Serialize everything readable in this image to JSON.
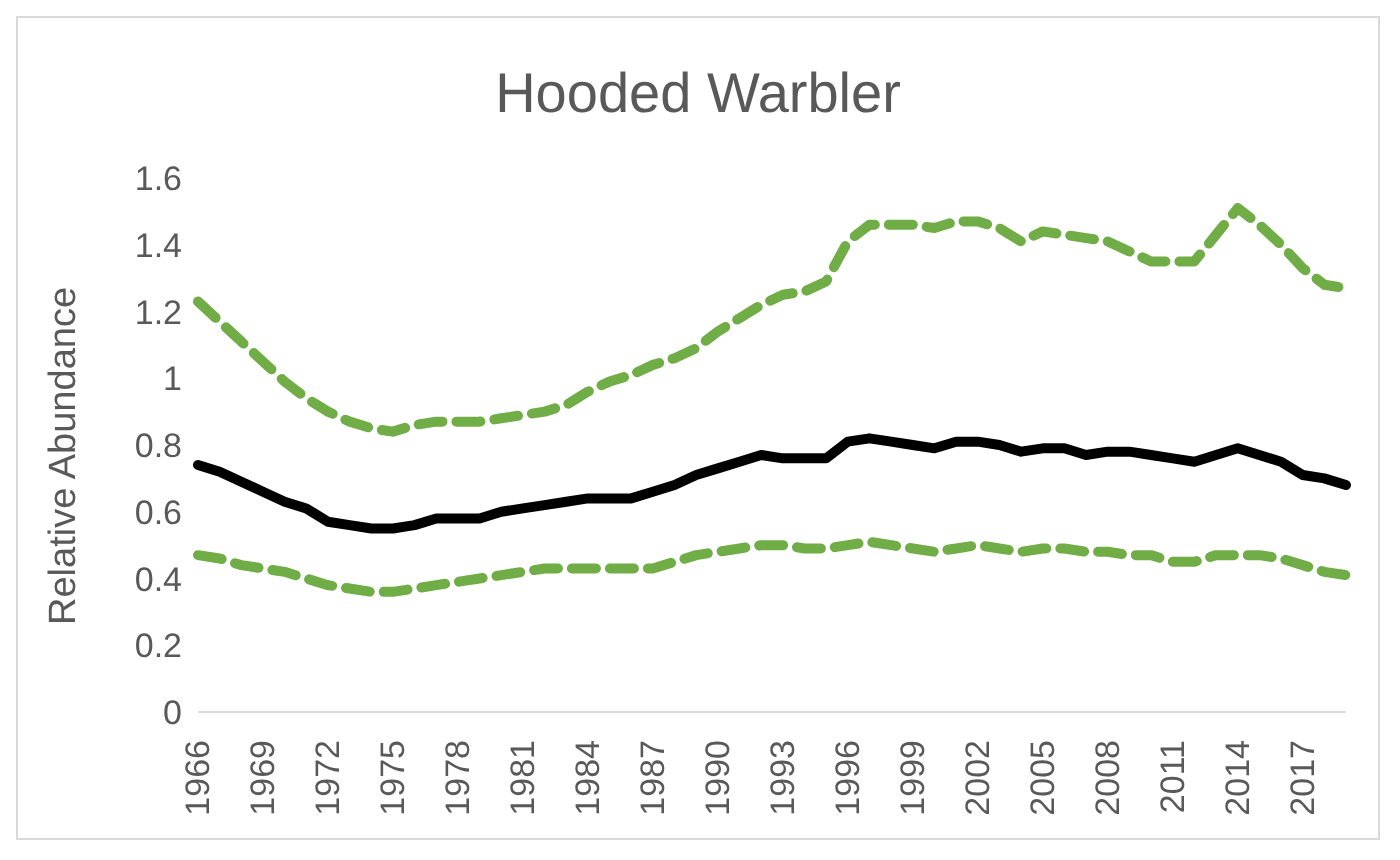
{
  "chart_data": {
    "type": "line",
    "title": "Hooded Warbler",
    "ylabel": "Relative Abundance",
    "categories": [
      "1966",
      null,
      null,
      "1969",
      null,
      null,
      "1972",
      null,
      null,
      "1975",
      null,
      null,
      "1978",
      null,
      null,
      "1981",
      null,
      null,
      "1984",
      null,
      null,
      "1987",
      null,
      null,
      "1990",
      null,
      null,
      "1993",
      null,
      null,
      "1996",
      null,
      null,
      "1999",
      null,
      null,
      "2002",
      null,
      null,
      "2005",
      null,
      null,
      "2008",
      null,
      null,
      "2011",
      null,
      null,
      "2014",
      null,
      null,
      "2017",
      null,
      null
    ],
    "series": [
      {
        "color": "#70ad47",
        "line_style": "dashed",
        "values": [
          1.23,
          1.17,
          1.11,
          1.05,
          0.99,
          0.94,
          0.9,
          0.87,
          0.85,
          0.84,
          0.86,
          0.87,
          0.87,
          0.87,
          0.88,
          0.89,
          0.9,
          0.92,
          0.96,
          0.99,
          1.01,
          1.04,
          1.06,
          1.09,
          1.14,
          1.18,
          1.22,
          1.25,
          1.26,
          1.29,
          1.41,
          1.46,
          1.46,
          1.46,
          1.45,
          1.47,
          1.47,
          1.45,
          1.41,
          1.44,
          1.43,
          1.42,
          1.41,
          1.38,
          1.35,
          1.35,
          1.35,
          1.43,
          1.51,
          1.46,
          1.4,
          1.33,
          1.28,
          1.27
        ]
      },
      {
        "color": "#000000",
        "line_style": "solid",
        "values": [
          0.74,
          0.72,
          0.69,
          0.66,
          0.63,
          0.61,
          0.57,
          0.56,
          0.55,
          0.55,
          0.56,
          0.58,
          0.58,
          0.58,
          0.6,
          0.61,
          0.62,
          0.63,
          0.64,
          0.64,
          0.64,
          0.66,
          0.68,
          0.71,
          0.73,
          0.75,
          0.77,
          0.76,
          0.76,
          0.76,
          0.81,
          0.82,
          0.81,
          0.8,
          0.79,
          0.81,
          0.81,
          0.8,
          0.78,
          0.79,
          0.79,
          0.77,
          0.78,
          0.78,
          0.77,
          0.76,
          0.75,
          0.77,
          0.79,
          0.77,
          0.75,
          0.71,
          0.7,
          0.68
        ]
      },
      {
        "color": "#70ad47",
        "line_style": "dashed",
        "values": [
          0.47,
          0.46,
          0.44,
          0.43,
          0.42,
          0.4,
          0.38,
          0.37,
          0.36,
          0.36,
          0.37,
          0.38,
          0.39,
          0.4,
          0.41,
          0.42,
          0.43,
          0.43,
          0.43,
          0.43,
          0.43,
          0.43,
          0.45,
          0.47,
          0.48,
          0.49,
          0.5,
          0.5,
          0.49,
          0.49,
          0.5,
          0.51,
          0.5,
          0.49,
          0.48,
          0.49,
          0.5,
          0.49,
          0.48,
          0.49,
          0.49,
          0.48,
          0.48,
          0.47,
          0.47,
          0.45,
          0.45,
          0.47,
          0.47,
          0.47,
          0.46,
          0.44,
          0.42,
          0.41
        ]
      }
    ],
    "ylim": [
      0,
      1.6
    ],
    "yticks": [
      0,
      0.2,
      0.4,
      0.6,
      0.8,
      1,
      1.2,
      1.4,
      1.6
    ],
    "grid": false
  }
}
